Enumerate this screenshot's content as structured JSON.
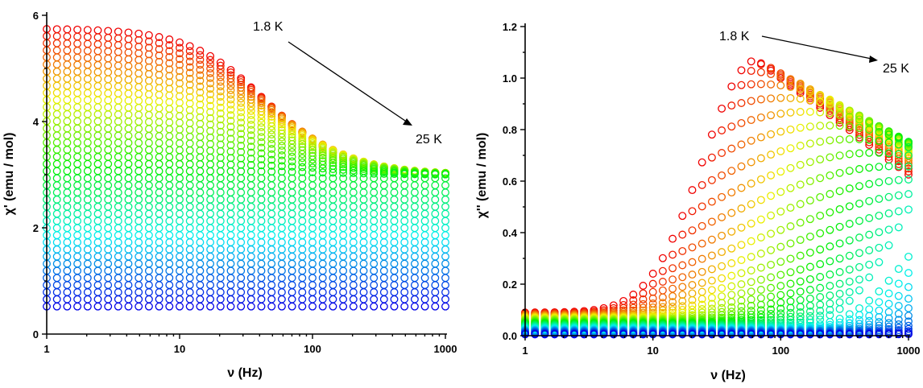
{
  "chart_data": [
    {
      "type": "scatter",
      "xscale": "log",
      "xlim": [
        1,
        1000
      ],
      "ylim": [
        0,
        6
      ],
      "xticks": [
        "1",
        "10",
        "100",
        "1000"
      ],
      "yticks": [
        "0",
        "2",
        "4",
        "6"
      ],
      "xlabel": "ν (Hz)",
      "ylabel": "χ' (emu / mol)",
      "annotation_start": "1.8 K",
      "annotation_end": "25 K",
      "n_temperatures": 40,
      "n_points_per_curve": 40,
      "color_order": "red (1.8 K) → orange → yellow → green → cyan → blue (25 K)",
      "series_summary": {
        "low_freq_values": {
          "first_1.8K": 5.75,
          "last_25K": 0.52
        },
        "high_freq_limit": 3.0,
        "relaxation_freq_hz_first": 45
      }
    },
    {
      "type": "scatter",
      "xscale": "log",
      "xlim": [
        1,
        1000
      ],
      "ylim": [
        0,
        1.2
      ],
      "xticks": [
        "1",
        "10",
        "100",
        "1000"
      ],
      "yticks": [
        "0.0",
        "0.2",
        "0.4",
        "0.6",
        "0.8",
        "1.0",
        "1.2"
      ],
      "xlabel": "ν (Hz)",
      "ylabel": "χ'' (emu / mol)",
      "annotation_start": "1.8 K",
      "annotation_end": "25 K",
      "n_temperatures": 40,
      "n_points_per_curve": 40,
      "color_order": "red (1.8 K) → orange → yellow → green → cyan → blue (25 K)",
      "series_summary": {
        "peak_first_curve": {
          "x": 65,
          "y": 1.07
        },
        "value_at_1000Hz_first_curve": 0.62,
        "baseline_at_1Hz": 0.09
      }
    }
  ]
}
